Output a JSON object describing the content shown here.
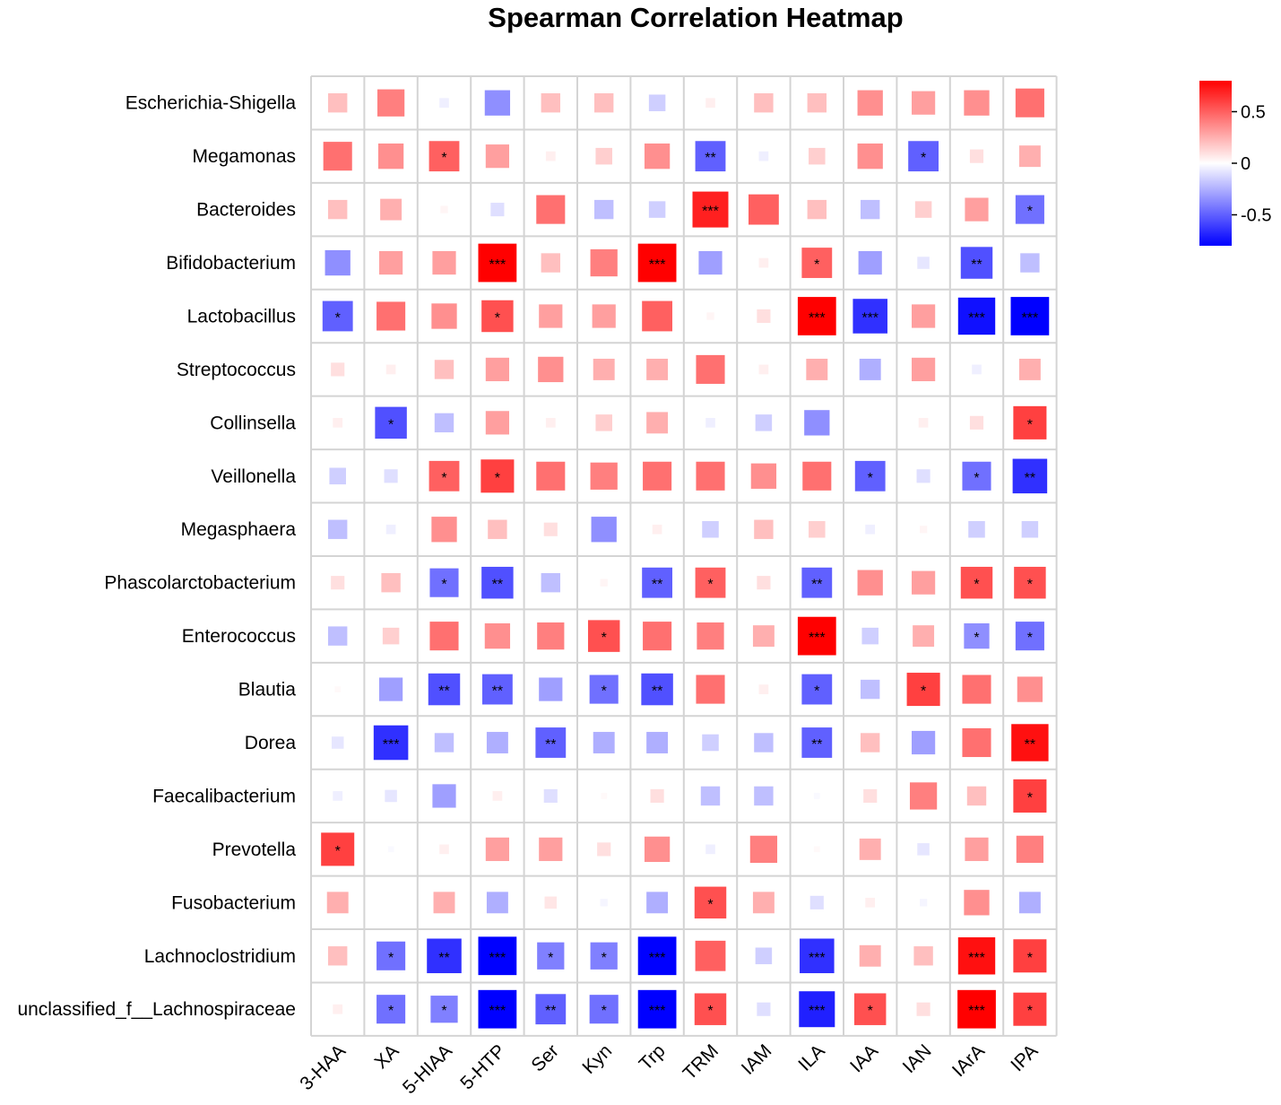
{
  "chart_data": {
    "type": "heatmap",
    "title": "Spearman Correlation Heatmap",
    "rows": [
      "Escherichia-Shigella",
      "Megamonas",
      "Bacteroides",
      "Bifidobacterium",
      "Lactobacillus",
      "Streptococcus",
      "Collinsella",
      "Veillonella",
      "Megasphaera",
      "Phascolarctobacterium",
      "Enterococcus",
      "Blautia",
      "Dorea",
      "Faecalibacterium",
      "Prevotella",
      "Fusobacterium",
      "Lachnoclostridium",
      "unclassified_f__Lachnospiraceae"
    ],
    "columns": [
      "3-HAA",
      "XA",
      "5-HIAA",
      "5-HTP",
      "Ser",
      "Kyn",
      "Trp",
      "TRM",
      "IAM",
      "ILA",
      "IAA",
      "IAN",
      "IArA",
      "IPA"
    ],
    "values": [
      [
        0.2,
        0.4,
        -0.05,
        -0.35,
        0.2,
        0.2,
        -0.15,
        0.05,
        0.2,
        0.2,
        0.35,
        0.3,
        0.35,
        0.45
      ],
      [
        0.45,
        0.35,
        0.5,
        0.3,
        0.05,
        0.15,
        0.35,
        -0.5,
        -0.05,
        0.15,
        0.35,
        -0.5,
        0.1,
        0.25
      ],
      [
        0.2,
        0.25,
        0.03,
        -0.1,
        0.45,
        -0.2,
        -0.15,
        0.7,
        0.5,
        0.2,
        -0.2,
        0.15,
        0.3,
        -0.45
      ],
      [
        -0.35,
        0.3,
        0.3,
        0.8,
        0.2,
        0.4,
        0.8,
        -0.3,
        0.05,
        0.5,
        -0.3,
        -0.08,
        -0.55,
        -0.2
      ],
      [
        -0.5,
        0.45,
        0.35,
        0.55,
        0.3,
        0.3,
        0.5,
        0.03,
        0.1,
        0.8,
        -0.65,
        0.3,
        -0.75,
        -0.8
      ],
      [
        0.1,
        0.05,
        0.2,
        0.3,
        0.35,
        0.25,
        0.25,
        0.45,
        0.05,
        0.25,
        -0.25,
        0.3,
        -0.05,
        0.25
      ],
      [
        0.05,
        -0.55,
        -0.2,
        0.3,
        0.05,
        0.15,
        0.25,
        -0.05,
        -0.15,
        -0.35,
        0.0,
        0.05,
        0.1,
        0.6
      ],
      [
        -0.15,
        -0.1,
        0.5,
        0.6,
        0.45,
        0.4,
        0.45,
        0.45,
        0.35,
        0.45,
        -0.5,
        -0.1,
        -0.45,
        -0.65
      ],
      [
        -0.2,
        -0.05,
        0.35,
        0.2,
        0.1,
        -0.35,
        0.05,
        -0.15,
        0.2,
        0.15,
        -0.05,
        0.03,
        -0.15,
        -0.15
      ],
      [
        0.1,
        0.2,
        -0.45,
        -0.55,
        -0.2,
        0.03,
        -0.5,
        0.5,
        0.1,
        -0.5,
        0.35,
        0.3,
        0.55,
        0.55
      ],
      [
        -0.2,
        0.15,
        0.45,
        0.35,
        0.4,
        0.55,
        0.45,
        0.4,
        0.25,
        0.85,
        -0.15,
        0.25,
        -0.35,
        -0.45
      ],
      [
        0.02,
        -0.3,
        -0.55,
        -0.5,
        -0.3,
        -0.45,
        -0.55,
        0.45,
        0.05,
        -0.5,
        -0.2,
        0.6,
        0.45,
        0.35
      ],
      [
        -0.08,
        -0.65,
        -0.2,
        -0.25,
        -0.5,
        -0.25,
        -0.25,
        -0.15,
        -0.2,
        -0.5,
        0.2,
        -0.3,
        0.45,
        0.75
      ],
      [
        -0.05,
        -0.08,
        -0.3,
        0.05,
        -0.1,
        0.02,
        0.1,
        -0.2,
        -0.2,
        -0.02,
        0.1,
        0.4,
        0.2,
        0.6
      ],
      [
        0.6,
        -0.02,
        0.05,
        0.3,
        0.3,
        0.1,
        0.35,
        -0.05,
        0.4,
        0.02,
        0.25,
        -0.08,
        0.3,
        0.4
      ],
      [
        0.25,
        0.0,
        0.25,
        -0.25,
        0.08,
        -0.03,
        -0.25,
        0.55,
        0.25,
        -0.1,
        0.05,
        -0.03,
        0.35,
        -0.25
      ],
      [
        0.2,
        -0.45,
        -0.65,
        -0.9,
        -0.4,
        -0.4,
        -0.9,
        0.5,
        -0.15,
        -0.65,
        0.25,
        0.2,
        0.75,
        0.6
      ],
      [
        0.05,
        -0.45,
        -0.4,
        -0.85,
        -0.5,
        -0.45,
        -0.8,
        0.55,
        -0.1,
        -0.7,
        0.55,
        0.1,
        0.9,
        0.6
      ]
    ],
    "significance": [
      [
        "",
        "",
        "",
        "",
        "",
        "",
        "",
        "",
        "",
        "",
        "",
        "",
        "",
        ""
      ],
      [
        "",
        "",
        "*",
        "",
        "",
        "",
        "",
        "**",
        "",
        "",
        "",
        "*",
        "",
        ""
      ],
      [
        "",
        "",
        "",
        "",
        "",
        "",
        "",
        "***",
        "",
        "",
        "",
        "",
        "",
        "*"
      ],
      [
        "",
        "",
        "",
        "***",
        "",
        "",
        "***",
        "",
        "",
        "*",
        "",
        "",
        "**",
        ""
      ],
      [
        "*",
        "",
        "",
        "*",
        "",
        "",
        "",
        "",
        "",
        "***",
        "***",
        "",
        "***",
        "***"
      ],
      [
        "",
        "",
        "",
        "",
        "",
        "",
        "",
        "",
        "",
        "",
        "",
        "",
        "",
        ""
      ],
      [
        "",
        "*",
        "",
        "",
        "",
        "",
        "",
        "",
        "",
        "",
        "",
        "",
        "",
        "*"
      ],
      [
        "",
        "",
        "*",
        "*",
        "",
        "",
        "",
        "",
        "",
        "",
        "*",
        "",
        "*",
        "**"
      ],
      [
        "",
        "",
        "",
        "",
        "",
        "",
        "",
        "",
        "",
        "",
        "",
        "",
        "",
        ""
      ],
      [
        "",
        "",
        "*",
        "**",
        "",
        "",
        "**",
        "*",
        "",
        "**",
        "",
        "",
        "*",
        "*"
      ],
      [
        "",
        "",
        "",
        "",
        "",
        "*",
        "",
        "",
        "",
        "***",
        "",
        "",
        "*",
        "*"
      ],
      [
        "",
        "",
        "**",
        "**",
        "",
        "*",
        "**",
        "",
        "",
        "*",
        "",
        "*",
        "",
        ""
      ],
      [
        "",
        "***",
        "",
        "",
        "**",
        "",
        "",
        "",
        "",
        "**",
        "",
        "",
        "",
        "**"
      ],
      [
        "",
        "",
        "",
        "",
        "",
        "",
        "",
        "",
        "",
        "",
        "",
        "",
        "",
        "*"
      ],
      [
        "*",
        "",
        "",
        "",
        "",
        "",
        "",
        "",
        "",
        "",
        "",
        "",
        "",
        ""
      ],
      [
        "",
        "",
        "",
        "",
        "",
        "",
        "",
        "*",
        "",
        "",
        "",
        "",
        "",
        ""
      ],
      [
        "",
        "*",
        "**",
        "***",
        "*",
        "*",
        "***",
        "",
        "",
        "***",
        "",
        "",
        "***",
        "*"
      ],
      [
        "",
        "*",
        "*",
        "***",
        "**",
        "*",
        "***",
        "*",
        "",
        "***",
        "*",
        "",
        "***",
        "*"
      ]
    ],
    "value_range": [
      -0.8,
      0.8
    ],
    "colormap": [
      "#0000ff",
      "#ffffff",
      "#ff0000"
    ],
    "colorbar_ticks": [
      0.5,
      0,
      -0.5
    ],
    "colorbar_tick_labels": [
      "0.5",
      "0",
      "-0.5"
    ],
    "legend_position": "top-right"
  }
}
